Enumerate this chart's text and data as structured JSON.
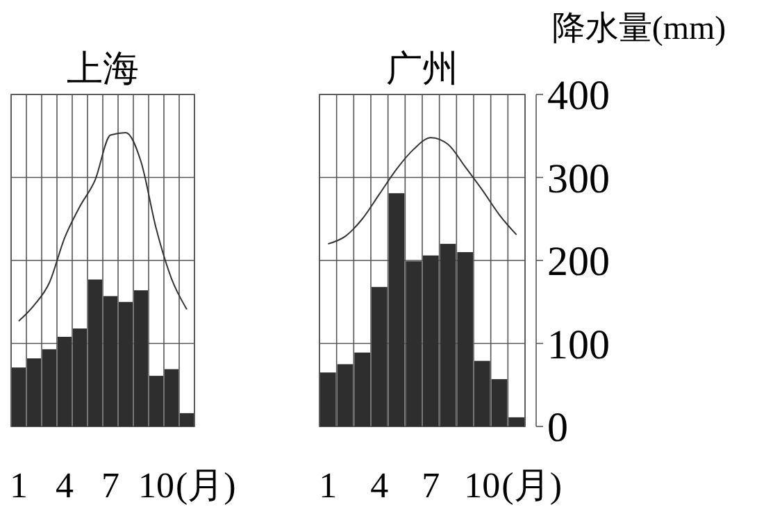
{
  "chart_data": [
    {
      "type": "bar",
      "title": "上海",
      "xlabel": "(月)",
      "categories": [
        "1",
        null,
        null,
        "4",
        null,
        null,
        "7",
        null,
        null,
        "10",
        null,
        null
      ],
      "series": [
        {
          "color": "#2e2e2e",
          "values": [
            71,
            82,
            93,
            108,
            118,
            177,
            157,
            150,
            164,
            61,
            69,
            16
          ]
        },
        {
          "type": "line",
          "color": "#333333",
          "values": [
            127,
            146,
            173,
            227,
            265,
            297,
            351,
            354,
            319,
            238,
            178,
            141
          ]
        }
      ],
      "ylim": [
        0,
        400
      ],
      "yticks": [
        {
          "value": 0,
          "label": null
        },
        {
          "value": 100,
          "label": null
        },
        {
          "value": 200,
          "label": null
        },
        {
          "value": 300,
          "label": null
        },
        {
          "value": 400,
          "label": null
        }
      ],
      "grid": true,
      "tick_labels": "x",
      "marker": "none"
    },
    {
      "type": "bar",
      "title": "广州",
      "xlabel": "(月)",
      "ylabel": "降水量(mm)",
      "categories": [
        "1",
        null,
        null,
        "4",
        null,
        null,
        "7",
        null,
        null,
        "10",
        null,
        null
      ],
      "series": [
        {
          "color": "#2e2e2e",
          "values": [
            65,
            75,
            89,
            168,
            281,
            199,
            206,
            220,
            210,
            79,
            57,
            11
          ]
        },
        {
          "type": "line",
          "color": "#333333",
          "values": [
            220,
            229,
            250,
            280,
            310,
            334,
            348,
            340,
            313,
            285,
            255,
            231
          ]
        }
      ],
      "ylim": [
        0,
        400
      ],
      "yticks": [
        0,
        100,
        200,
        300,
        400
      ],
      "grid": true,
      "marker": "none"
    }
  ]
}
